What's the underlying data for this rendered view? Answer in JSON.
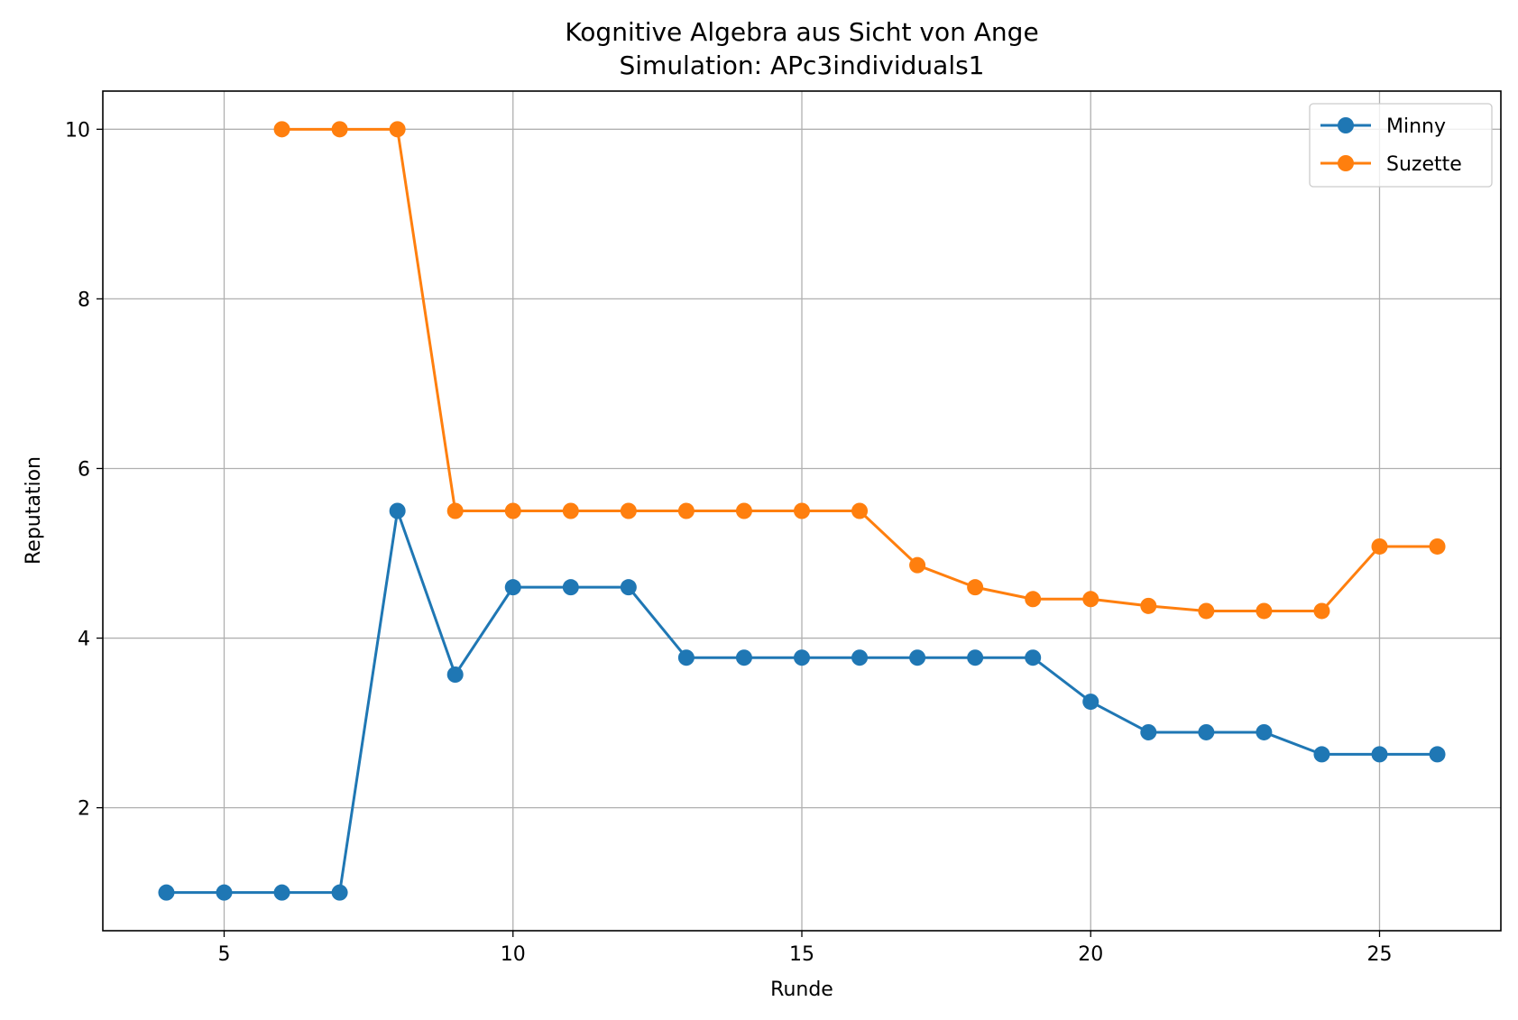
{
  "chart_data": {
    "type": "line",
    "title": "Kognitive Algebra aus Sicht von Ange",
    "subtitle": "Simulation: APc3individuals1",
    "xlabel": "Runde",
    "ylabel": "Reputation",
    "xlim": [
      2.9,
      27.1
    ],
    "ylim": [
      0.55,
      10.45
    ],
    "xticks": [
      5,
      10,
      15,
      20,
      25
    ],
    "yticks": [
      2,
      4,
      6,
      8,
      10
    ],
    "grid": true,
    "legend_position": "top-right",
    "series": [
      {
        "name": "Minny",
        "color": "#1f77b4",
        "marker": "circle",
        "x": [
          4,
          5,
          6,
          7,
          8,
          9,
          10,
          11,
          12,
          13,
          14,
          15,
          16,
          17,
          18,
          19,
          20,
          21,
          22,
          23,
          24,
          25,
          26
        ],
        "y": [
          1.0,
          1.0,
          1.0,
          1.0,
          5.5,
          3.57,
          4.6,
          4.6,
          4.6,
          3.77,
          3.77,
          3.77,
          3.77,
          3.77,
          3.77,
          3.77,
          3.25,
          2.89,
          2.89,
          2.89,
          2.63,
          2.63,
          2.63
        ]
      },
      {
        "name": "Suzette",
        "color": "#ff7f0e",
        "marker": "circle",
        "x": [
          6,
          7,
          8,
          9,
          10,
          11,
          12,
          13,
          14,
          15,
          16,
          17,
          18,
          19,
          20,
          21,
          22,
          23,
          24,
          25,
          26
        ],
        "y": [
          10.0,
          10.0,
          10.0,
          5.5,
          5.5,
          5.5,
          5.5,
          5.5,
          5.5,
          5.5,
          5.5,
          4.86,
          4.6,
          4.46,
          4.46,
          4.38,
          4.32,
          4.32,
          4.32,
          5.08,
          5.08
        ]
      }
    ]
  }
}
